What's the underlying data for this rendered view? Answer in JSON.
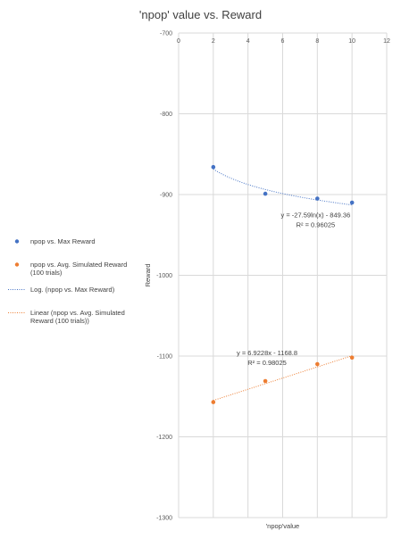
{
  "chart_data": {
    "type": "scatter",
    "title": "'npop' value vs. Reward",
    "xlabel": "'npop'value",
    "ylabel": "Reward",
    "xlim": [
      0,
      12
    ],
    "ylim": [
      -1300,
      -700
    ],
    "x_ticks": [
      "0",
      "2",
      "4",
      "6",
      "8",
      "10",
      "12"
    ],
    "y_ticks": [
      "-700",
      "-800",
      "-900",
      "-1000",
      "-1100",
      "-1200",
      "-1300"
    ],
    "grid": true,
    "legend_position": "left",
    "series": [
      {
        "name": "npop vs. Max Reward",
        "color": "#4472C4",
        "x": [
          2,
          5,
          8,
          10
        ],
        "y": [
          -866,
          -899,
          -905,
          -910
        ]
      },
      {
        "name": "npop vs. Avg. Simulated Reward (100 trials)",
        "color": "#ED7D31",
        "x": [
          2,
          5,
          8,
          10
        ],
        "y": [
          -1157,
          -1131,
          -1110,
          -1102
        ]
      }
    ],
    "trendlines": [
      {
        "name": "Log.  (npop vs. Max Reward)",
        "type": "log",
        "a": -27.59,
        "b": -849.36,
        "color": "#4472C4",
        "equation": "y = -27.59ln(x) - 849.36",
        "r2": "R² = 0.96025"
      },
      {
        "name": "Linear  (npop vs. Avg. Simulated Reward (100 trials))",
        "type": "linear",
        "a": 6.9228,
        "b": -1168.8,
        "color": "#ED7D31",
        "equation": "y = 6.9228x - 1168.8",
        "r2": "R² = 0.98025"
      }
    ]
  }
}
